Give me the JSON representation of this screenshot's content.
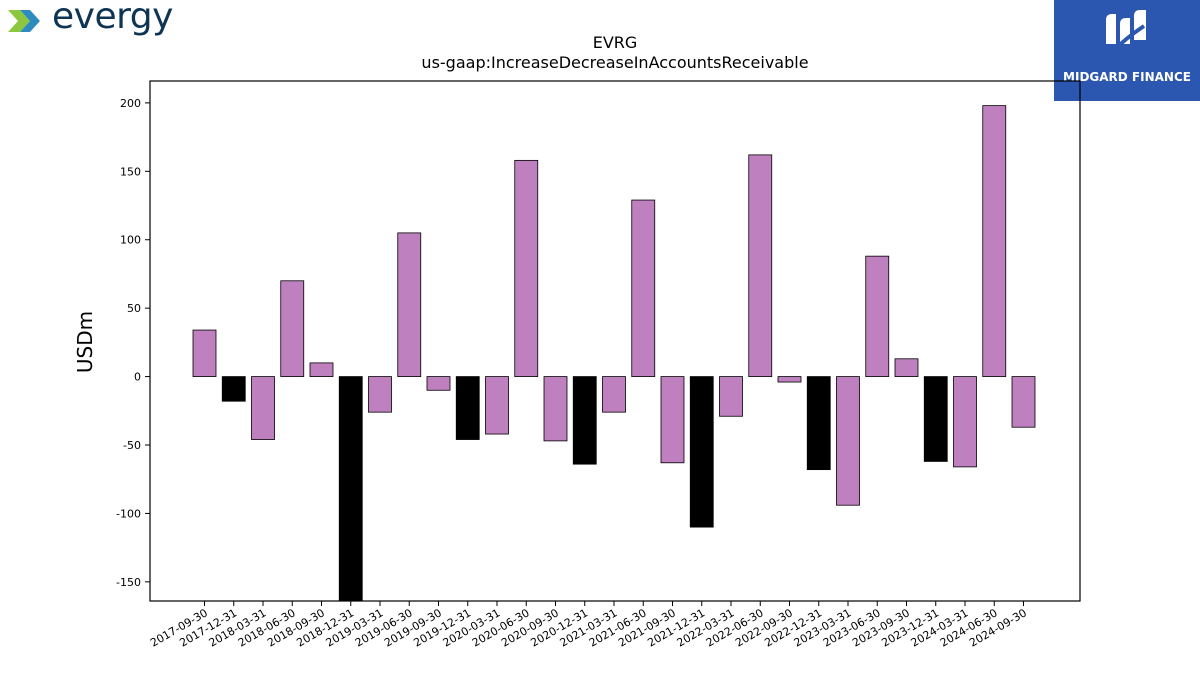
{
  "brand": {
    "logo_text": "evergy",
    "badge_text": "MIDGARD FINANCE"
  },
  "colors": {
    "positive": "#bf80bf",
    "negative_year_end": "#000000",
    "badge_bg": "#2b57b0",
    "brand_text": "#0e3553"
  },
  "chart_data": {
    "type": "bar",
    "title": "EVRG",
    "subtitle": "us-gaap:IncreaseDecreaseInAccountsReceivable",
    "xlabel": "",
    "ylabel": "USDm",
    "ylim": [
      -164,
      216
    ],
    "yticks": [
      -150,
      -100,
      -50,
      0,
      50,
      100,
      150,
      200
    ],
    "grid": false,
    "categories": [
      "2017-09-30",
      "2017-12-31",
      "2018-03-31",
      "2018-06-30",
      "2018-09-30",
      "2018-12-31",
      "2019-03-31",
      "2019-06-30",
      "2019-09-30",
      "2019-12-31",
      "2020-03-31",
      "2020-06-30",
      "2020-09-30",
      "2020-12-31",
      "2021-03-31",
      "2021-06-30",
      "2021-09-30",
      "2021-12-31",
      "2022-03-31",
      "2022-06-30",
      "2022-09-30",
      "2022-12-31",
      "2023-03-31",
      "2023-06-30",
      "2023-09-30",
      "2023-12-31",
      "2024-03-31",
      "2024-06-30",
      "2024-09-30"
    ],
    "values": [
      34,
      -18,
      -46,
      70,
      10,
      -164,
      -26,
      105,
      -10,
      -46,
      -42,
      158,
      -47,
      -64,
      -26,
      129,
      -63,
      -110,
      -29,
      162,
      -4,
      -68,
      -94,
      88,
      13,
      -62,
      -66,
      198,
      -37
    ],
    "year_end_black": [
      false,
      true,
      false,
      false,
      false,
      true,
      false,
      false,
      false,
      true,
      false,
      false,
      false,
      true,
      false,
      false,
      false,
      true,
      false,
      false,
      false,
      true,
      false,
      false,
      false,
      true,
      false,
      false,
      false
    ]
  }
}
